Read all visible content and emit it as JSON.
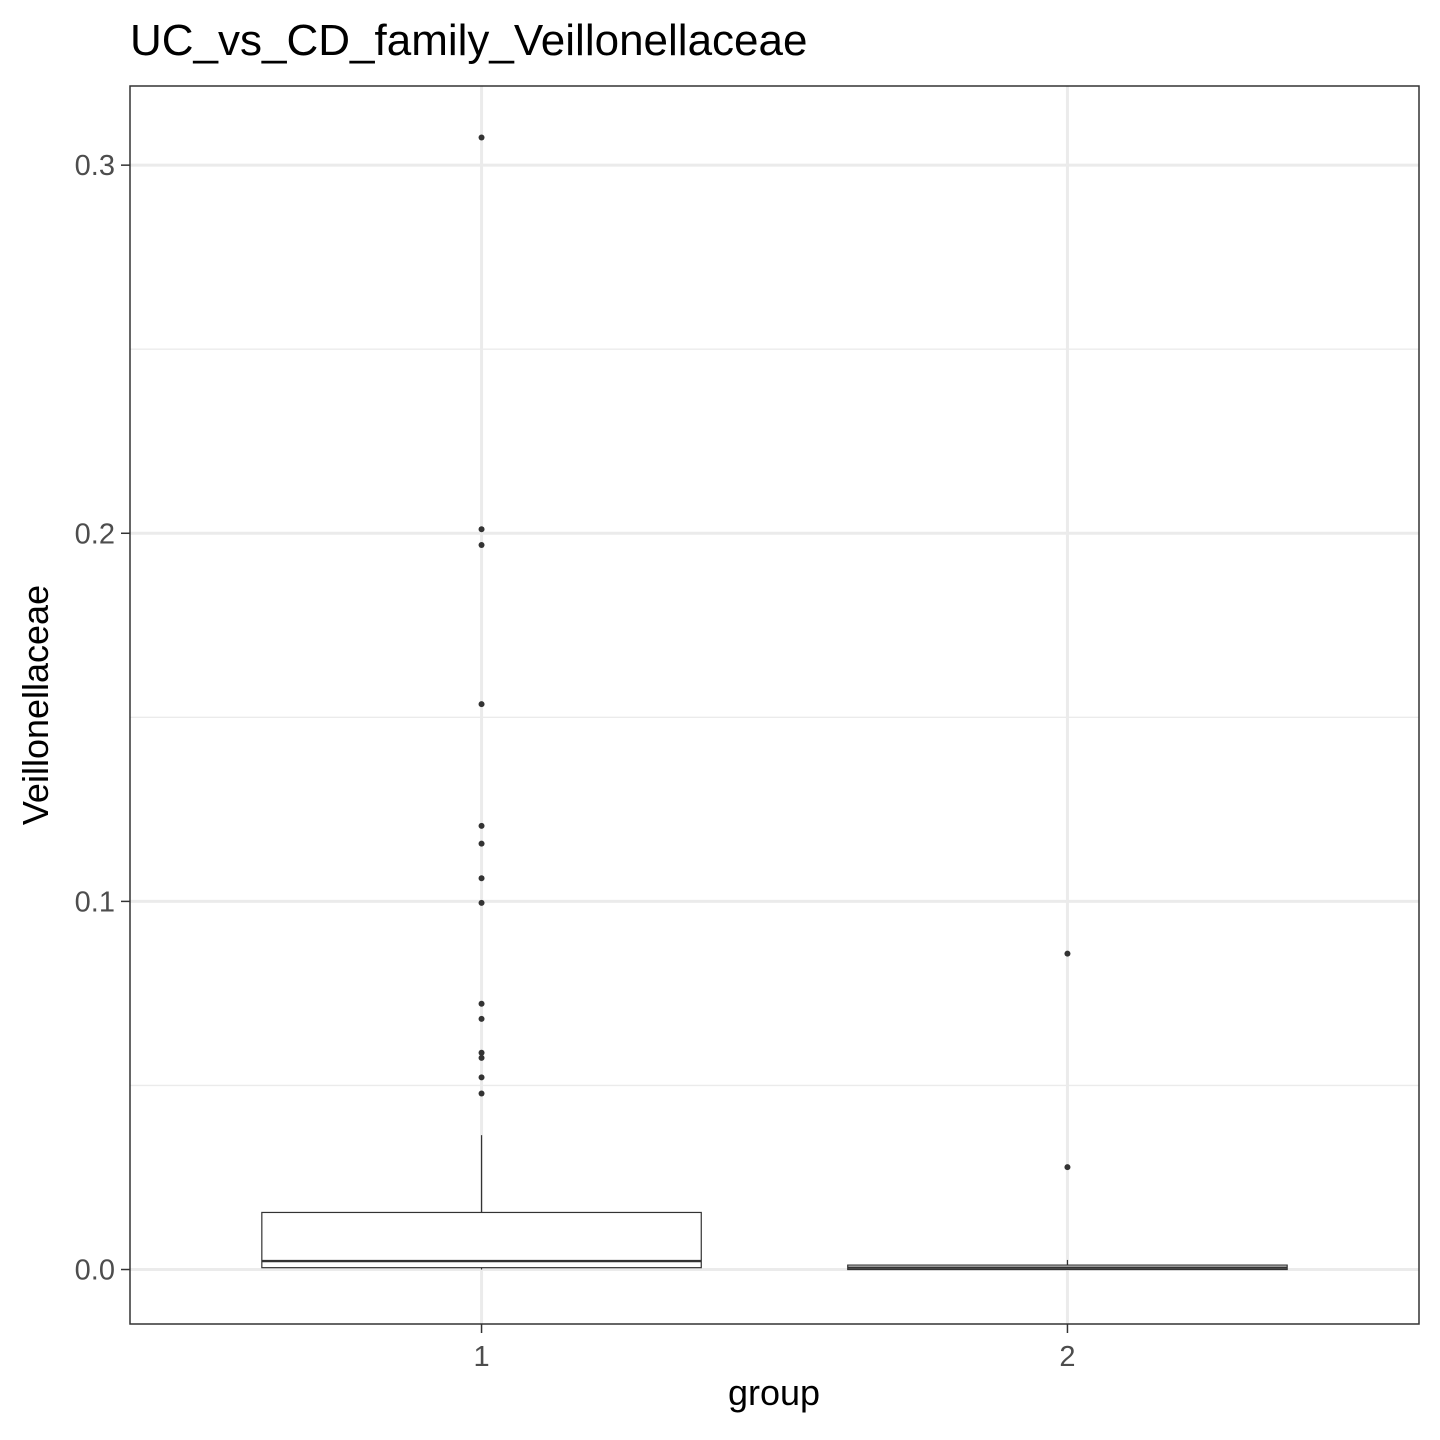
{
  "chart_data": {
    "type": "boxplot",
    "title": "UC_vs_CD_family_Veillonellaceae",
    "xlabel": "group",
    "ylabel": "Veillonellaceae",
    "categories": [
      "1",
      "2"
    ],
    "ylim": [
      -0.0148,
      0.3215
    ],
    "yticks": [
      {
        "value": 0.0,
        "label": "0.0"
      },
      {
        "value": 0.1,
        "label": "0.1"
      },
      {
        "value": 0.2,
        "label": "0.2"
      },
      {
        "value": 0.3,
        "label": "0.3"
      }
    ],
    "grid": true,
    "boxes": [
      {
        "category": "1",
        "whisker_low": 0.0,
        "q1": 0.0005,
        "median": 0.0023,
        "q3": 0.0155,
        "whisker_high": 0.0365,
        "outliers": [
          0.3075,
          0.2011,
          0.1968,
          0.1536,
          0.1205,
          0.1157,
          0.1063,
          0.0996,
          0.0722,
          0.0681,
          0.0589,
          0.0575,
          0.0522,
          0.0478
        ]
      },
      {
        "category": "2",
        "whisker_low": 0.0,
        "q1": 0.0,
        "median": 0.0005,
        "q3": 0.0012,
        "whisker_high": 0.0026,
        "outliers": [
          0.0858,
          0.0278
        ]
      }
    ],
    "colors": {
      "box_fill": "#ffffff",
      "box_line": "#333333",
      "points": "#333333",
      "grid_major": "#ebebeb",
      "grid_minor": "#ebebeb",
      "panel_border": "#333333"
    }
  }
}
